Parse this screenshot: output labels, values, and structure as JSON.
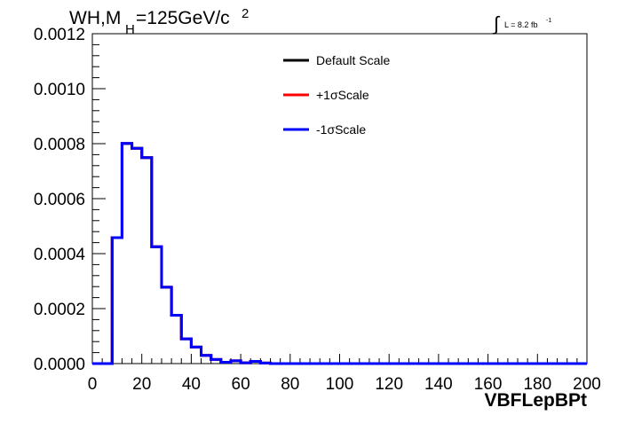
{
  "chart_data": {
    "type": "line",
    "title_main": "WH,M",
    "title_sub": "H",
    "title_rest": "=125GeV/c",
    "title_sup": "2",
    "lumi_label": "L = 8.2 fb",
    "lumi_sup": "-1",
    "xlabel": "VBFLepBPt",
    "ylabel": "",
    "xlim": [
      0,
      200
    ],
    "ylim": [
      0,
      0.0012
    ],
    "x_ticks": [
      0,
      20,
      40,
      60,
      80,
      100,
      120,
      140,
      160,
      180,
      200
    ],
    "x_tick_labels": [
      "0",
      "20",
      "40",
      "60",
      "80",
      "100",
      "120",
      "140",
      "160",
      "180",
      "200"
    ],
    "y_ticks": [
      0,
      0.0002,
      0.0004,
      0.0006,
      0.0008,
      0.001,
      0.0012
    ],
    "y_tick_labels": [
      "0.0000",
      "0.0002",
      "0.0004",
      "0.0006",
      "0.0008",
      "0.0010",
      "0.0012"
    ],
    "bin_edges": [
      0,
      4,
      8,
      12,
      16,
      20,
      24,
      28,
      32,
      36,
      40,
      44,
      48,
      52,
      56,
      60,
      64,
      68,
      72,
      76,
      80,
      84,
      88,
      92,
      96,
      100,
      104,
      108,
      112,
      116,
      120,
      124,
      128,
      132,
      136,
      140,
      144,
      148,
      152,
      156,
      160,
      164,
      168,
      172,
      176,
      180,
      184,
      188,
      192,
      196,
      200
    ],
    "series": [
      {
        "name": "Default Scale",
        "color": "#000000",
        "values": [
          0,
          0,
          0.000458,
          0.000801,
          0.000783,
          0.000749,
          0.000425,
          0.000278,
          0.000176,
          9e-05,
          6e-05,
          3e-05,
          1.5e-05,
          5e-06,
          1e-05,
          3e-06,
          8e-06,
          2e-06,
          0,
          0,
          0,
          0,
          0,
          0,
          0,
          0,
          0,
          0,
          0,
          0,
          0,
          0,
          0,
          0,
          0,
          0,
          0,
          0,
          0,
          0,
          0,
          0,
          0,
          0,
          0,
          0,
          0,
          0,
          0,
          0
        ]
      },
      {
        "name": "+1σScale",
        "color": "#ff0000",
        "values": [
          0,
          0,
          0.000458,
          0.000801,
          0.000783,
          0.000749,
          0.000425,
          0.000278,
          0.000176,
          9e-05,
          6e-05,
          3e-05,
          1.5e-05,
          5e-06,
          1e-05,
          3e-06,
          8e-06,
          2e-06,
          0,
          0,
          0,
          0,
          0,
          0,
          0,
          0,
          0,
          0,
          0,
          0,
          0,
          0,
          0,
          0,
          0,
          0,
          0,
          0,
          0,
          0,
          0,
          0,
          0,
          0,
          0,
          0,
          0,
          0,
          0,
          0
        ]
      },
      {
        "name": "-1σScale",
        "color": "#0000ff",
        "values": [
          0,
          0,
          0.000458,
          0.000801,
          0.000783,
          0.000749,
          0.000425,
          0.000278,
          0.000176,
          9e-05,
          6e-05,
          3e-05,
          1.5e-05,
          5e-06,
          1e-05,
          3e-06,
          8e-06,
          2e-06,
          0,
          0,
          0,
          0,
          0,
          0,
          0,
          0,
          0,
          0,
          0,
          0,
          0,
          0,
          0,
          0,
          0,
          0,
          0,
          0,
          0,
          0,
          0,
          0,
          0,
          0,
          0,
          0,
          0,
          0,
          0,
          0
        ]
      }
    ],
    "legend_position": "top-center",
    "grid": false
  }
}
